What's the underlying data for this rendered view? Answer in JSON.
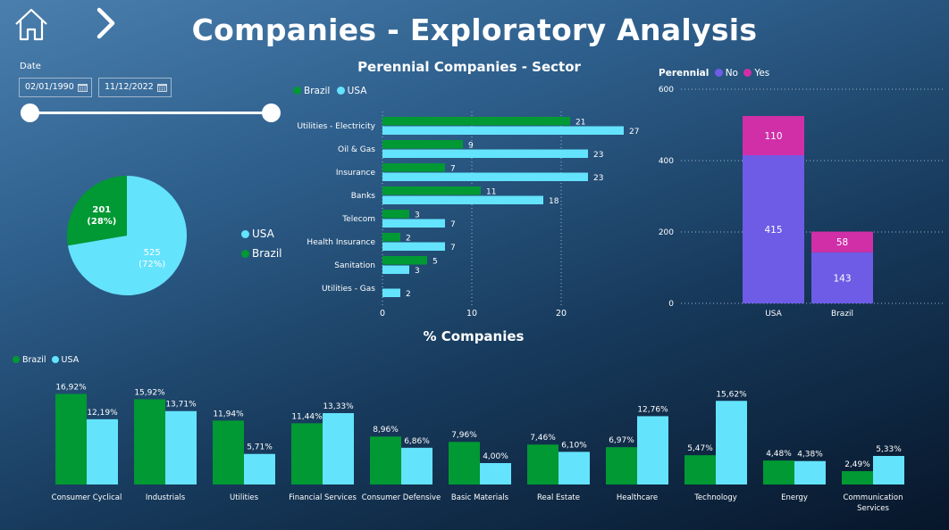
{
  "header": {
    "title": "Companies - Exploratory Analysis",
    "home_icon": "home-icon",
    "next_icon": "chevron-right-icon"
  },
  "filters": {
    "date_label": "Date",
    "start_date": "02/01/1990",
    "end_date": "11/12/2022",
    "calendar_icon": "calendar-icon"
  },
  "colors": {
    "brazil": "#009933",
    "usa": "#64e3fc",
    "perennial_no": "#6e5ce6",
    "perennial_yes": "#d02fa8"
  },
  "chart_data": [
    {
      "id": "country-pie",
      "type": "pie",
      "title": "",
      "slices": [
        {
          "name": "USA",
          "value": 525,
          "percent": "72%"
        },
        {
          "name": "Brazil",
          "value": 201,
          "percent": "28%"
        }
      ],
      "legend": [
        "USA",
        "Brazil"
      ],
      "legend_position": "right"
    },
    {
      "id": "perennial-sector",
      "type": "bar",
      "orientation": "horizontal",
      "title": "Perennial Companies - Sector",
      "legend_position": "top-left",
      "categories": [
        "Utilities - Electricity",
        "Oil & Gas",
        "Insurance",
        "Banks",
        "Telecom",
        "Health Insurance",
        "Sanitation",
        "Utilities - Gas"
      ],
      "series": [
        {
          "name": "Brazil",
          "values": [
            21,
            9,
            7,
            11,
            3,
            2,
            5,
            null
          ]
        },
        {
          "name": "USA",
          "values": [
            27,
            23,
            23,
            18,
            7,
            7,
            3,
            2
          ]
        }
      ],
      "xticks": [
        "0",
        "10",
        "20"
      ],
      "xlim": [
        0,
        28
      ],
      "grid": true
    },
    {
      "id": "perennial-stacked",
      "type": "bar",
      "stacked": true,
      "title": "",
      "legend_title": "Perennial",
      "legend_position": "top-left",
      "categories": [
        "USA",
        "Brazil"
      ],
      "series": [
        {
          "name": "No",
          "values": [
            415,
            143
          ]
        },
        {
          "name": "Yes",
          "values": [
            110,
            58
          ]
        }
      ],
      "yticks": [
        "0",
        "200",
        "400",
        "600"
      ],
      "ylim": [
        0,
        600
      ],
      "grid": true
    },
    {
      "id": "companies-pct",
      "type": "bar",
      "title": "% Companies",
      "legend_position": "top-left",
      "categories": [
        "Consumer Cyclical",
        "Industrials",
        "Utilities",
        "Financial Services",
        "Consumer Defensive",
        "Basic Materials",
        "Real Estate",
        "Healthcare",
        "Technology",
        "Energy",
        "Communication Services"
      ],
      "series": [
        {
          "name": "Brazil",
          "values": [
            16.92,
            15.92,
            11.94,
            11.44,
            8.96,
            7.96,
            7.46,
            6.97,
            5.47,
            4.48,
            2.49
          ],
          "labels": [
            "16,92%",
            "15,92%",
            "11,94%",
            "11,44%",
            "8,96%",
            "7,96%",
            "7,46%",
            "6,97%",
            "5,47%",
            "4,48%",
            "2,49%"
          ]
        },
        {
          "name": "USA",
          "values": [
            12.19,
            13.71,
            5.71,
            13.33,
            6.86,
            4.0,
            6.1,
            12.76,
            15.62,
            4.38,
            5.33
          ],
          "labels": [
            "12,19%",
            "13,71%",
            "5,71%",
            "13,33%",
            "6,86%",
            "4,00%",
            "6,10%",
            "12,76%",
            "15,62%",
            "4,38%",
            "5,33%"
          ]
        }
      ],
      "grid": false
    }
  ]
}
